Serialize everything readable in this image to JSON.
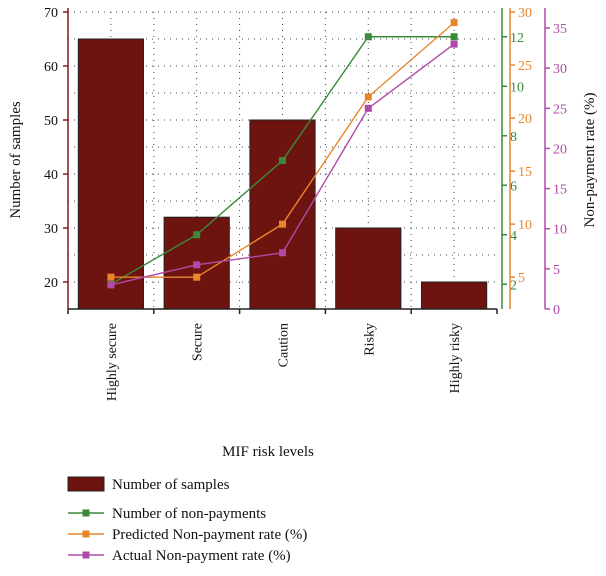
{
  "chart_data": {
    "type": "bar",
    "xlabel": "MIF risk levels",
    "categories": [
      "Highly secure",
      "Secure",
      "Caution",
      "Risky",
      "Highly risky"
    ],
    "axes": {
      "left": {
        "label": "Number of samples",
        "range": [
          15,
          70
        ],
        "ticks": [
          20,
          30,
          40,
          50,
          60,
          70
        ],
        "color": "#8b1a1a"
      },
      "green": {
        "label": "",
        "range": [
          1,
          13
        ],
        "ticks": [
          2,
          4,
          6,
          8,
          10,
          12
        ],
        "color": "#3a8a3a"
      },
      "orange": {
        "label": "",
        "range": [
          2,
          30
        ],
        "ticks": [
          5,
          10,
          15,
          20,
          25,
          30
        ],
        "color": "#e8862a"
      },
      "purple": {
        "label": "Non-payment rate (%)",
        "range": [
          0,
          37
        ],
        "ticks": [
          0,
          5,
          10,
          15,
          20,
          25,
          30,
          35
        ],
        "color": "#b04aa8"
      }
    },
    "series": [
      {
        "name": "Number of samples",
        "kind": "bar",
        "axis": "left",
        "values": [
          65,
          32,
          50,
          30,
          20
        ],
        "color": "#6e1410"
      },
      {
        "name": "Number of non-payments",
        "kind": "line",
        "axis": "green",
        "values": [
          2,
          4,
          7,
          12,
          12
        ],
        "color": "#3a8a3a"
      },
      {
        "name": "Predicted Non-payment rate (%)",
        "kind": "line",
        "axis": "orange",
        "values": [
          5,
          5,
          10,
          22,
          29
        ],
        "color": "#e8862a"
      },
      {
        "name": "Actual Non-payment rate (%)",
        "kind": "line",
        "axis": "purple",
        "values": [
          3,
          5.5,
          7,
          25,
          33
        ],
        "color": "#b04aa8"
      }
    ],
    "grid": true,
    "legend_position": "bottom-left"
  }
}
